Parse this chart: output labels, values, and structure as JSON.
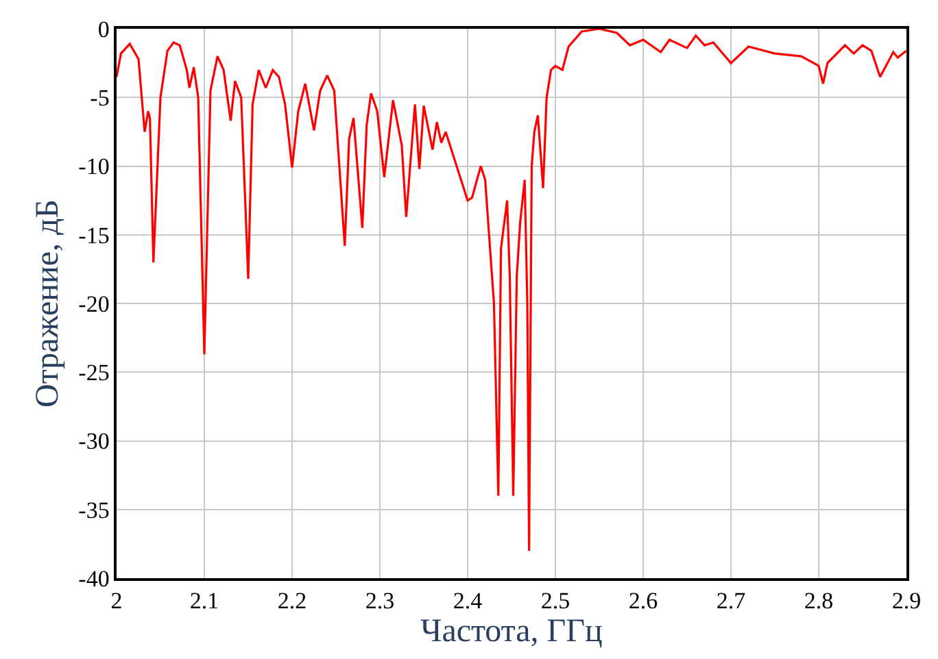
{
  "chart_data": {
    "type": "line",
    "xlabel": "Частота, ГГц",
    "ylabel": "Отражение, дБ",
    "x": [
      2.0,
      2.005,
      2.015,
      2.025,
      2.032,
      2.036,
      2.038,
      2.042,
      2.05,
      2.058,
      2.065,
      2.072,
      2.08,
      2.083,
      2.088,
      2.093,
      2.1,
      2.107,
      2.115,
      2.122,
      2.13,
      2.135,
      2.142,
      2.15,
      2.155,
      2.162,
      2.17,
      2.178,
      2.185,
      2.192,
      2.2,
      2.207,
      2.215,
      2.225,
      2.232,
      2.24,
      2.248,
      2.26,
      2.265,
      2.27,
      2.28,
      2.285,
      2.29,
      2.297,
      2.305,
      2.315,
      2.325,
      2.33,
      2.34,
      2.345,
      2.35,
      2.36,
      2.365,
      2.37,
      2.375,
      2.385,
      2.4,
      2.405,
      2.415,
      2.42,
      2.43,
      2.435,
      2.438,
      2.44,
      2.445,
      2.448,
      2.452,
      2.456,
      2.46,
      2.465,
      2.468,
      2.47,
      2.473,
      2.476,
      2.48,
      2.486,
      2.49,
      2.495,
      2.5,
      2.508,
      2.515,
      2.53,
      2.55,
      2.57,
      2.585,
      2.6,
      2.62,
      2.63,
      2.65,
      2.66,
      2.67,
      2.68,
      2.7,
      2.72,
      2.75,
      2.78,
      2.8,
      2.805,
      2.81,
      2.83,
      2.84,
      2.85,
      2.86,
      2.87,
      2.885,
      2.89,
      2.9
    ],
    "values": [
      -3.5,
      -1.8,
      -1.1,
      -2.2,
      -7.5,
      -6.0,
      -6.5,
      -17.0,
      -5.0,
      -1.6,
      -1.0,
      -1.2,
      -3.0,
      -4.3,
      -2.8,
      -5.0,
      -23.7,
      -4.5,
      -2.0,
      -3.0,
      -6.7,
      -3.8,
      -5.0,
      -18.2,
      -5.5,
      -3.0,
      -4.3,
      -3.0,
      -3.5,
      -5.5,
      -10.1,
      -6.0,
      -4.0,
      -7.4,
      -4.5,
      -3.4,
      -4.5,
      -15.8,
      -8.0,
      -6.5,
      -14.5,
      -7.0,
      -4.7,
      -6.0,
      -10.8,
      -5.2,
      -8.5,
      -13.7,
      -5.5,
      -10.2,
      -5.6,
      -8.8,
      -6.8,
      -8.3,
      -7.5,
      -9.5,
      -12.5,
      -12.3,
      -10.0,
      -11.0,
      -20.0,
      -34.0,
      -16.0,
      -15.0,
      -12.5,
      -18.0,
      -34.0,
      -18.0,
      -14.0,
      -11.0,
      -20.0,
      -38.0,
      -10.0,
      -7.5,
      -6.3,
      -11.6,
      -5.0,
      -3.0,
      -2.7,
      -3.0,
      -1.3,
      -0.2,
      0.0,
      -0.3,
      -1.2,
      -0.8,
      -1.7,
      -0.8,
      -1.4,
      -0.5,
      -1.2,
      -1.0,
      -2.5,
      -1.3,
      -1.8,
      -2.0,
      -2.7,
      -4.0,
      -2.5,
      -1.2,
      -1.8,
      -1.2,
      -1.6,
      -3.5,
      -1.7,
      -2.1,
      -1.6
    ],
    "color": "#ff0000",
    "xlim": [
      2,
      2.9
    ],
    "xticks": [
      2,
      2.1,
      2.2,
      2.3,
      2.4,
      2.5,
      2.6,
      2.7,
      2.8,
      2.9
    ],
    "ylim": [
      -40,
      0
    ],
    "yticks": [
      -40,
      -35,
      -30,
      -25,
      -20,
      -15,
      -10,
      -5,
      0
    ],
    "grid": true,
    "legend": false,
    "marker": "none",
    "line_style": "solid"
  }
}
